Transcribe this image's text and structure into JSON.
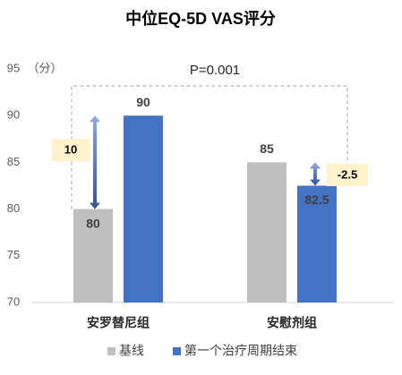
{
  "chart_data": {
    "type": "bar",
    "title": "中位EQ-5D VAS评分",
    "y_label": "（分）",
    "categories": [
      "安罗替尼组",
      "安慰剂组"
    ],
    "series": [
      {
        "name": "基线",
        "color": "#bfbfbf",
        "values": [
          80,
          85
        ]
      },
      {
        "name": "第一个治疗周期结束",
        "color": "#4472c4",
        "values": [
          90,
          82.5
        ]
      }
    ],
    "ylim": [
      70,
      95
    ],
    "yticks": [
      70,
      75,
      80,
      85,
      90,
      95
    ],
    "p_value_label": "P=0.001",
    "change_labels": [
      "10",
      "-2.5"
    ],
    "annotation_color": "#fff2cc"
  }
}
